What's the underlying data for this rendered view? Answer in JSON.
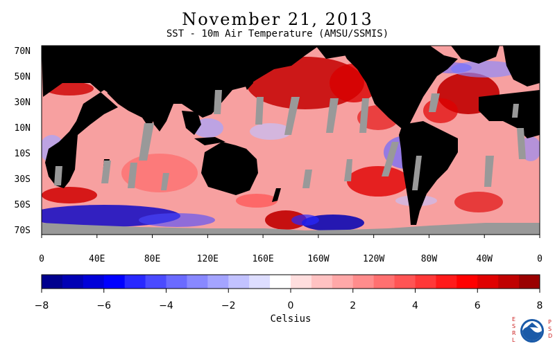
{
  "title": "November 21, 2013",
  "subtitle": "SST - 10m Air Temperature (AMSU/SSMIS)",
  "map": {
    "lat_labels": [
      "70N",
      "50N",
      "30N",
      "10N",
      "10S",
      "30S",
      "50S",
      "70S"
    ],
    "lon_labels": [
      "0",
      "40E",
      "80E",
      "120E",
      "160E",
      "160W",
      "120W",
      "80W",
      "40W",
      "0"
    ],
    "colors": {
      "land": "#000000",
      "ice_nodata": "#999999",
      "ocean_base": "#f7a0a0"
    }
  },
  "colorbar": {
    "tick_labels": [
      "−8",
      "−6",
      "−4",
      "−2",
      "0",
      "2",
      "4",
      "6",
      "8"
    ],
    "range": [
      -8,
      8
    ],
    "label": "Celsius",
    "colors": [
      "#00008e",
      "#0000b4",
      "#0000d8",
      "#0000ff",
      "#2828ff",
      "#4a4aff",
      "#6a6aff",
      "#8888ff",
      "#a4a4ff",
      "#c2c2ff",
      "#dedeff",
      "#ffffff",
      "#ffdede",
      "#ffc2c2",
      "#ffa8a8",
      "#ff8c8c",
      "#ff7070",
      "#ff5454",
      "#ff3838",
      "#ff1a1a",
      "#ff0000",
      "#e00000",
      "#c00000",
      "#9a0000"
    ]
  },
  "logo": {
    "left_letters": "ESRL",
    "right_letters": "PSD",
    "emblem": "NOAA"
  }
}
